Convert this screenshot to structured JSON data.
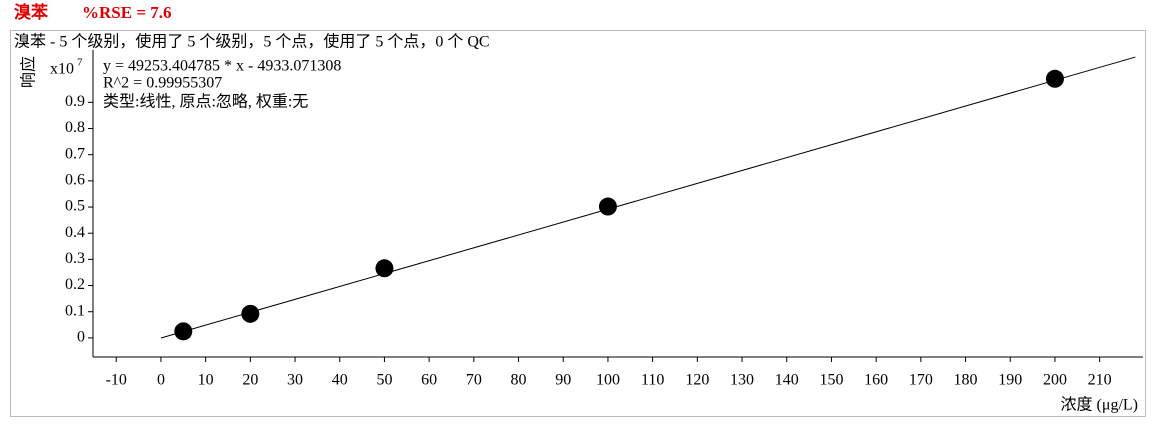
{
  "header": {
    "name": "溴苯",
    "rse": "%RSE = 7.6"
  },
  "chart_data": {
    "type": "scatter",
    "caption": "溴苯 - 5 个级别，使用了 5 个级别，5 个点，使用了 5 个点，0 个 QC",
    "equation": "y = 49253.404785 * x  - 4933.071308",
    "r_squared": "R^2 = 0.99955307",
    "fit_type": "类型:线性, 原点:忽略, 权重:无",
    "y_label": "响应",
    "y_multiplier": "x10",
    "y_exponent": "7",
    "x_label": "浓度 (μg/L)",
    "x": [
      5,
      20,
      50,
      100,
      200
    ],
    "values": [
      0.025,
      0.092,
      0.266,
      0.502,
      0.99
    ],
    "color": "#000000",
    "fit_line": {
      "x": [
        0,
        218
      ],
      "values": [
        -0.0005,
        1.073
      ]
    },
    "xlim": [
      -15.2,
      219.7
    ],
    "ylim": [
      -0.073,
      1.1
    ],
    "xticks": [
      -10,
      0,
      10,
      20,
      30,
      40,
      50,
      60,
      70,
      80,
      90,
      100,
      110,
      120,
      130,
      140,
      150,
      160,
      170,
      180,
      190,
      200,
      210
    ],
    "yticks": [
      0,
      0.1,
      0.2,
      0.3,
      0.4,
      0.5,
      0.6,
      0.7,
      0.8,
      0.9
    ]
  }
}
